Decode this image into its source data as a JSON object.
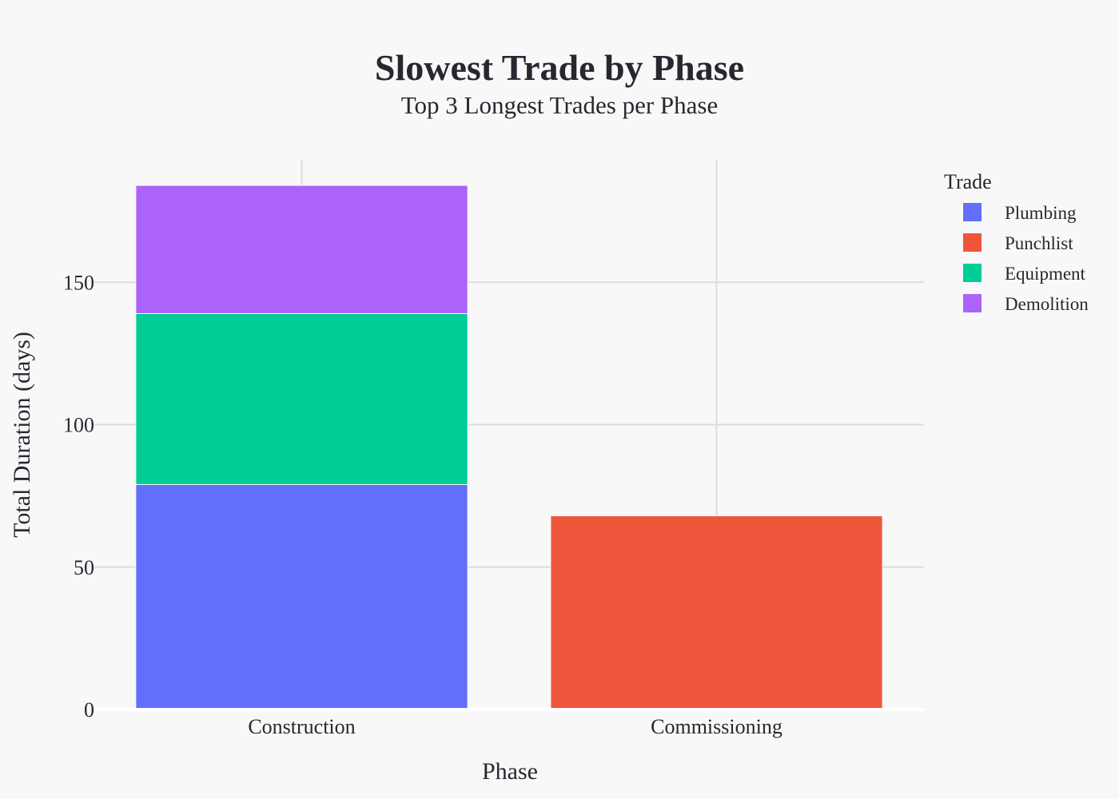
{
  "chart_data": {
    "type": "bar",
    "stacked": true,
    "title": "Slowest Trade by Phase",
    "subtitle": "Top 3 Longest Trades per Phase",
    "xlabel": "Phase",
    "ylabel": "Total Duration (days)",
    "categories": [
      "Construction",
      "Commissioning"
    ],
    "ylim": [
      0,
      193
    ],
    "yticks": [
      0,
      50,
      100,
      150
    ],
    "grid": true,
    "legend_title": "Trade",
    "legend_position": "top-right",
    "series": [
      {
        "name": "Plumbing",
        "color": "#636efa",
        "values": [
          79,
          0
        ]
      },
      {
        "name": "Punchlist",
        "color": "#ef553b",
        "values": [
          0,
          68
        ]
      },
      {
        "name": "Equipment",
        "color": "#00cc96",
        "values": [
          60,
          0
        ]
      },
      {
        "name": "Demolition",
        "color": "#ab63fa",
        "values": [
          45,
          0
        ]
      }
    ]
  }
}
